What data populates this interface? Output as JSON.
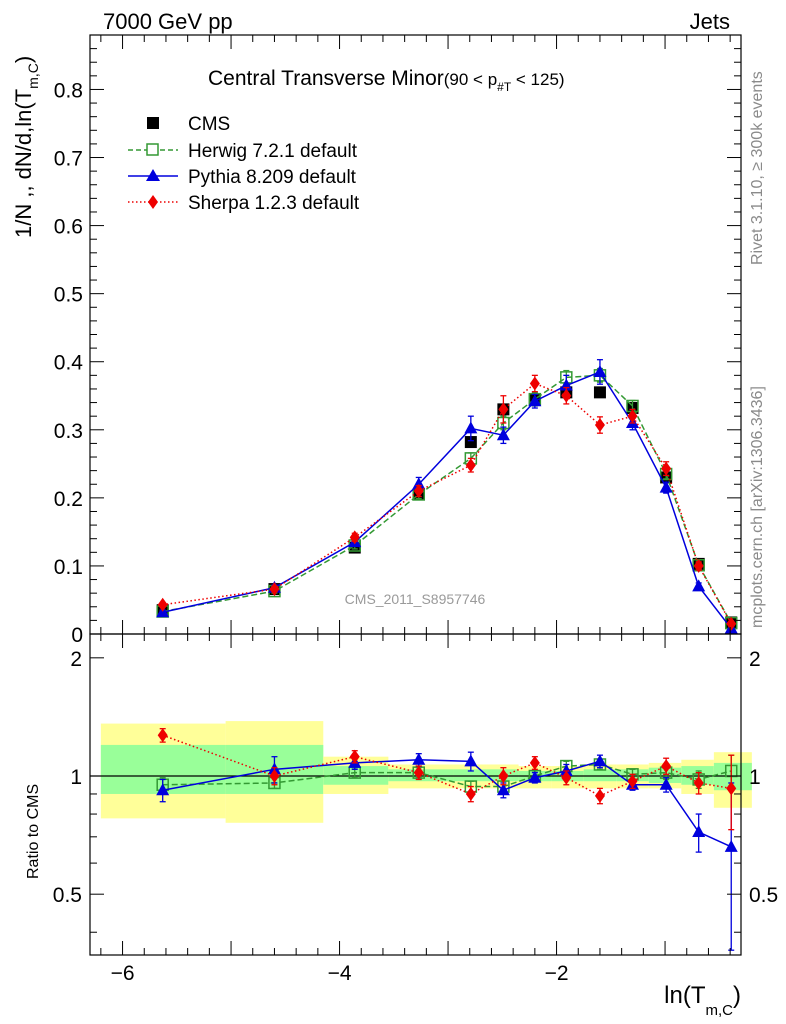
{
  "header": {
    "energy_label": "7000 GeV pp",
    "process_label": "Jets"
  },
  "side": {
    "rivet_label": "Rivet 3.1.10, ≥ 300k events",
    "mcplots_label": "mcplots.cern.ch [arXiv:1306.3436]"
  },
  "legend": {
    "title": "Central Transverse Minor",
    "title_range": "(90 < p",
    "title_range_sub": "#T",
    "title_range_end": " < 125)",
    "entries": [
      {
        "label": "CMS"
      },
      {
        "label": "Herwig 7.2.1 default"
      },
      {
        "label": "Pythia 8.209 default"
      },
      {
        "label": "Sherpa 1.2.3 default"
      }
    ]
  },
  "reference_label": "CMS_2011_S8957746",
  "top_ylabel": "1/N ,, dN/d,ln(T",
  "top_ylabel_sub": "m,C",
  "top_ylabel_end": ")",
  "bottom_ylabel": "Ratio to CMS",
  "xlabel": "ln(T",
  "xlabel_sub": "m,C",
  "xlabel_end": ")",
  "colors": {
    "cms": "#000000",
    "herwig": "#339933",
    "pythia": "#0000dd",
    "sherpa": "#ee0000",
    "band_yellow": "#ffff99",
    "band_green": "#99ff99"
  },
  "chart_data": {
    "type": "line",
    "x_range": [
      -6.3,
      -0.3
    ],
    "x_ticks": [
      -6,
      -4,
      -2
    ],
    "top": {
      "ylim": [
        0,
        0.88
      ],
      "y_ticks": [
        0,
        0.1,
        0.2,
        0.3,
        0.4,
        0.5,
        0.6,
        0.7,
        0.8
      ],
      "y_tick_labels": [
        "0",
        "0.1",
        "0.2",
        "0.3",
        "0.4",
        "0.5",
        "0.6",
        "0.7",
        "0.8"
      ]
    },
    "ratio": {
      "ylim": [
        0.35,
        2.3
      ],
      "y_ticks": [
        0.5,
        1,
        2
      ],
      "y_tick_labels": [
        "0.5",
        "1",
        "2"
      ]
    },
    "bins": [
      {
        "xlo": -6.2,
        "xhi": -5.05,
        "yellow": [
          0.78,
          1.36
        ],
        "green": [
          0.9,
          1.2
        ]
      },
      {
        "xlo": -5.05,
        "xhi": -4.15,
        "yellow": [
          0.76,
          1.38
        ],
        "green": [
          0.9,
          1.2
        ]
      },
      {
        "xlo": -4.15,
        "xhi": -3.55,
        "yellow": [
          0.9,
          1.12
        ],
        "green": [
          0.95,
          1.06
        ]
      },
      {
        "xlo": -3.55,
        "xhi": -2.95,
        "yellow": [
          0.93,
          1.07
        ],
        "green": [
          0.97,
          1.04
        ]
      },
      {
        "xlo": -2.95,
        "xhi": -2.65,
        "yellow": [
          0.93,
          1.07
        ],
        "green": [
          0.97,
          1.04
        ]
      },
      {
        "xlo": -2.65,
        "xhi": -2.35,
        "yellow": [
          0.93,
          1.07
        ],
        "green": [
          0.97,
          1.04
        ]
      },
      {
        "xlo": -2.35,
        "xhi": -2.05,
        "yellow": [
          0.93,
          1.06
        ],
        "green": [
          0.97,
          1.03
        ]
      },
      {
        "xlo": -2.05,
        "xhi": -1.75,
        "yellow": [
          0.93,
          1.06
        ],
        "green": [
          0.97,
          1.03
        ]
      },
      {
        "xlo": -1.75,
        "xhi": -1.45,
        "yellow": [
          0.93,
          1.07
        ],
        "green": [
          0.97,
          1.04
        ]
      },
      {
        "xlo": -1.45,
        "xhi": -1.15,
        "yellow": [
          0.93,
          1.07
        ],
        "green": [
          0.97,
          1.04
        ]
      },
      {
        "xlo": -1.15,
        "xhi": -0.85,
        "yellow": [
          0.93,
          1.08
        ],
        "green": [
          0.96,
          1.05
        ]
      },
      {
        "xlo": -0.85,
        "xhi": -0.55,
        "yellow": [
          0.9,
          1.1
        ],
        "green": [
          0.95,
          1.06
        ]
      },
      {
        "xlo": -0.55,
        "xhi": -0.2,
        "yellow": [
          0.83,
          1.15
        ],
        "green": [
          0.92,
          1.08
        ]
      }
    ],
    "series": [
      {
        "name": "CMS",
        "style": "data",
        "x": [
          -5.63,
          -4.6,
          -3.86,
          -3.27,
          -2.79,
          -2.49,
          -2.2,
          -1.91,
          -1.6,
          -1.3,
          -0.99,
          -0.69,
          -0.39
        ],
        "y": [
          0.035,
          0.066,
          0.127,
          0.205,
          0.282,
          0.33,
          0.344,
          0.355,
          0.355,
          0.332,
          0.23,
          0.103,
          0.017
        ],
        "ratio": [
          1,
          1,
          1,
          1,
          1,
          1,
          1,
          1,
          1,
          1,
          1,
          1,
          1
        ],
        "ratio_err": [
          0,
          0,
          0,
          0,
          0,
          0,
          0,
          0,
          0,
          0,
          0,
          0,
          0
        ]
      },
      {
        "name": "Herwig 7.2.1 default",
        "style": "dashed",
        "x": [
          -5.63,
          -4.6,
          -3.86,
          -3.27,
          -2.79,
          -2.49,
          -2.2,
          -1.91,
          -1.6,
          -1.3,
          -0.99,
          -0.69,
          -0.39
        ],
        "y": [
          0.033,
          0.063,
          0.13,
          0.205,
          0.258,
          0.31,
          0.345,
          0.377,
          0.38,
          0.335,
          0.235,
          0.101,
          0.016
        ],
        "y_err": [
          0.002,
          0.003,
          0.005,
          0.006,
          0.008,
          0.01,
          0.01,
          0.01,
          0.01,
          0.008,
          0.007,
          0.004,
          0.002
        ],
        "ratio": [
          0.95,
          0.96,
          1.02,
          1.02,
          0.94,
          0.94,
          1.0,
          1.06,
          1.07,
          1.01,
          1.02,
          0.98,
          1.03
        ],
        "ratio_err": [
          0.04,
          0.03,
          0.03,
          0.03,
          0.03,
          0.03,
          0.03,
          0.03,
          0.03,
          0.03,
          0.04,
          0.05,
          0.1
        ]
      },
      {
        "name": "Pythia 8.209 default",
        "style": "solid",
        "x": [
          -5.63,
          -4.6,
          -3.86,
          -3.27,
          -2.79,
          -2.49,
          -2.2,
          -1.91,
          -1.6,
          -1.3,
          -0.99,
          -0.69,
          -0.39
        ],
        "y": [
          0.032,
          0.068,
          0.135,
          0.22,
          0.302,
          0.292,
          0.342,
          0.365,
          0.385,
          0.31,
          0.215,
          0.07,
          0.008
        ],
        "y_err": [
          0.003,
          0.004,
          0.006,
          0.01,
          0.018,
          0.012,
          0.01,
          0.015,
          0.018,
          0.01,
          0.008,
          0.005,
          0.003
        ],
        "ratio": [
          0.92,
          1.04,
          1.08,
          1.1,
          1.09,
          0.92,
          0.99,
          1.03,
          1.09,
          0.95,
          0.95,
          0.72,
          0.66
        ],
        "ratio_err": [
          0.06,
          0.08,
          0.04,
          0.04,
          0.06,
          0.04,
          0.03,
          0.04,
          0.04,
          0.03,
          0.04,
          0.08,
          0.3
        ]
      },
      {
        "name": "Sherpa 1.2.3 default",
        "style": "dotted",
        "x": [
          -5.63,
          -4.6,
          -3.86,
          -3.27,
          -2.79,
          -2.49,
          -2.2,
          -1.91,
          -1.6,
          -1.3,
          -0.99,
          -0.69,
          -0.39
        ],
        "y": [
          0.043,
          0.066,
          0.142,
          0.21,
          0.248,
          0.33,
          0.368,
          0.35,
          0.307,
          0.32,
          0.243,
          0.1,
          0.015
        ],
        "y_err": [
          0.003,
          0.004,
          0.006,
          0.008,
          0.01,
          0.02,
          0.012,
          0.012,
          0.012,
          0.01,
          0.01,
          0.006,
          0.003
        ],
        "ratio": [
          1.27,
          1.0,
          1.12,
          1.02,
          0.9,
          1.0,
          1.08,
          0.99,
          0.89,
          0.97,
          1.06,
          0.96,
          0.93
        ],
        "ratio_err": [
          0.05,
          0.05,
          0.04,
          0.04,
          0.04,
          0.05,
          0.04,
          0.04,
          0.04,
          0.04,
          0.05,
          0.06,
          0.2
        ]
      }
    ]
  }
}
